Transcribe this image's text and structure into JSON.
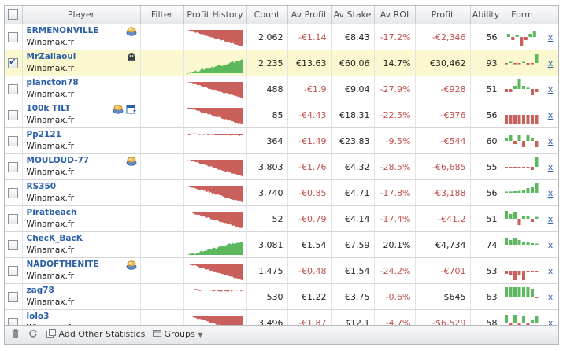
{
  "columns": {
    "player": "Player",
    "filter": "Filter",
    "profit_history": "Profit History",
    "count": "Count",
    "av_profit": "Av Profit",
    "av_stake": "Av Stake",
    "av_roi": "Av ROI",
    "profit": "Profit",
    "ability": "Ability",
    "form": "Form"
  },
  "colors": {
    "negative": "#c0504d",
    "positive_fill": "#5cb85c",
    "negative_fill": "#c9605c",
    "link": "#2b5fa8",
    "selected_row": "#fbf7cf"
  },
  "rows": [
    {
      "name": "ERMENONVILLE",
      "site": "Winamax.fr",
      "icons": [
        "cake-icon"
      ],
      "checked": false,
      "count": "2,062",
      "av_profit": "-€1.14",
      "av_stake": "€8.43",
      "av_roi": "-17.2%",
      "profit": "-€2,346",
      "ability": "56",
      "remove": "x",
      "history_trend": "down",
      "form": [
        1,
        -1,
        0.7,
        -3,
        -1,
        1,
        2
      ]
    },
    {
      "name": "MrZailaoui",
      "site": "Winamax.fr",
      "icons": [
        "ghost-icon"
      ],
      "checked": true,
      "count": "2,235",
      "av_profit": "€13.63",
      "av_stake": "€60.06",
      "av_roi": "14.7%",
      "profit": "€30,462",
      "ability": "93",
      "remove": "x",
      "history_trend": "up",
      "form": [
        -0.4,
        0.3,
        -0.4,
        -0.4,
        0.3,
        -0.6,
        -0.4,
        3
      ]
    },
    {
      "name": "plancton78",
      "site": "Winamax.fr",
      "icons": [],
      "checked": false,
      "count": "488",
      "av_profit": "-€1.9",
      "av_stake": "€9.04",
      "av_roi": "-27.9%",
      "profit": "-€928",
      "ability": "51",
      "remove": "x",
      "history_trend": "down",
      "form": [
        -1,
        -1,
        1,
        3,
        1,
        0.4,
        -2,
        -1
      ]
    },
    {
      "name": "100k TILT",
      "site": "Winamax.fr",
      "icons": [
        "cake-icon",
        "calendar-icon"
      ],
      "checked": false,
      "count": "85",
      "av_profit": "-€4.43",
      "av_stake": "€18.31",
      "av_roi": "-22.5%",
      "profit": "-€376",
      "ability": "56",
      "remove": "x",
      "history_trend": "down",
      "form": [
        -3,
        -3,
        -3,
        -3,
        -3,
        -3,
        -3,
        -3
      ]
    },
    {
      "name": "Pp2121",
      "site": "Winamax.fr",
      "icons": [],
      "checked": false,
      "count": "364",
      "av_profit": "-€1.49",
      "av_stake": "€23.83",
      "av_roi": "-9.5%",
      "profit": "-€544",
      "ability": "60",
      "remove": "x",
      "history_trend": "flat",
      "form": [
        1,
        2,
        -1,
        2,
        -2,
        2,
        1,
        -2
      ]
    },
    {
      "name": "MOULOUD-77",
      "site": "Winamax.fr",
      "icons": [
        "cake-icon"
      ],
      "checked": false,
      "count": "3,803",
      "av_profit": "-€1.76",
      "av_stake": "€4.32",
      "av_roi": "-28.5%",
      "profit": "-€6,685",
      "ability": "55",
      "remove": "x",
      "history_trend": "down",
      "form": [
        -0.5,
        -0.5,
        -0.5,
        -0.5,
        -0.5,
        -0.5,
        -1,
        3
      ]
    },
    {
      "name": "RS350",
      "site": "Winamax.fr",
      "icons": [],
      "checked": false,
      "count": "3,740",
      "av_profit": "-€0.85",
      "av_stake": "€4.71",
      "av_roi": "-17.8%",
      "profit": "-€3,188",
      "ability": "56",
      "remove": "x",
      "history_trend": "down",
      "form": [
        0.3,
        0.4,
        0.5,
        0.6,
        1,
        1.5,
        2,
        3
      ]
    },
    {
      "name": "Piratbeach",
      "site": "Winamax.fr",
      "icons": [],
      "checked": false,
      "count": "52",
      "av_profit": "-€0.79",
      "av_stake": "€4.14",
      "av_roi": "-17.4%",
      "profit": "-€41.2",
      "ability": "51",
      "remove": "x",
      "history_trend": "down",
      "form": [
        2.5,
        1.5,
        2,
        -2,
        1,
        1,
        -1,
        0.6
      ]
    },
    {
      "name": "ChecK_BacK",
      "site": "Winamax.fr",
      "icons": [],
      "checked": false,
      "count": "3,081",
      "av_profit": "€1.54",
      "av_stake": "€7.59",
      "av_roi": "20.1%",
      "profit": "€4,734",
      "ability": "74",
      "remove": "x",
      "history_trend": "up",
      "form": [
        2,
        1.5,
        2,
        1.5,
        0.8,
        1,
        0.5,
        0.4
      ]
    },
    {
      "name": "NADOFTHENITE",
      "site": "Winamax.fr",
      "icons": [
        "cake-icon"
      ],
      "checked": false,
      "count": "1,475",
      "av_profit": "-€0.48",
      "av_stake": "€1.54",
      "av_roi": "-24.2%",
      "profit": "-€701",
      "ability": "53",
      "remove": "x",
      "history_trend": "down",
      "form": [
        -1,
        -1.5,
        -3,
        -1.5,
        -3,
        -0.4,
        -0.3,
        -0.2
      ]
    },
    {
      "name": "zag78",
      "site": "Winamax.fr",
      "icons": [],
      "checked": false,
      "count": "530",
      "av_profit": "€1.22",
      "av_stake": "€3.75",
      "av_roi": "-0.6%",
      "profit": "$645",
      "ability": "63",
      "remove": "x",
      "history_trend": "flat",
      "form": [
        3,
        3,
        3,
        3,
        3,
        3,
        2.5,
        -0.5
      ]
    },
    {
      "name": "lolo3",
      "site": "Winamax.fr",
      "icons": [],
      "checked": false,
      "count": "3,496",
      "av_profit": "-€1.87",
      "av_stake": "$12.1",
      "av_roi": "-4.7%",
      "profit": "-$6,529",
      "ability": "58",
      "remove": "x",
      "history_trend": "down",
      "form": [
        2.5,
        -2,
        2.5,
        -2.5,
        2,
        -2.5,
        1,
        2
      ]
    }
  ],
  "footer": {
    "add_stats": "Add Other Statistics",
    "groups": "Groups"
  }
}
